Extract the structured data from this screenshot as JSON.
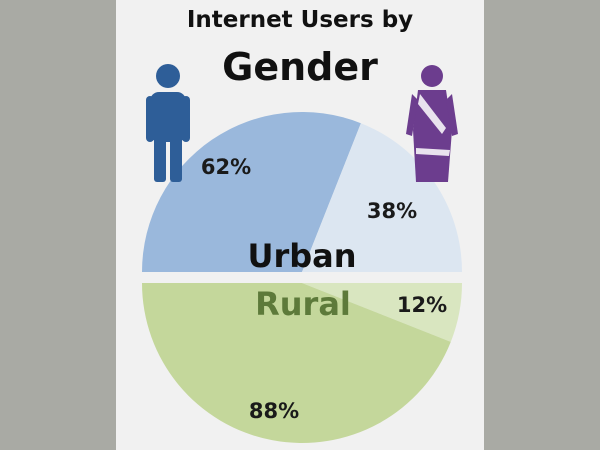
{
  "colors": {
    "background": "#a9aaa4",
    "panel": "#f1f1f1",
    "urban_male": "#9ab8dc",
    "urban_female": "#dce6f1",
    "rural_male": "#c4d79b",
    "rural_female": "#d9e6c0",
    "male_icon": "#2e5e98",
    "female_icon": "#6c3d8e",
    "rural_label": "#5d7a3a",
    "urban_label": "#111111"
  },
  "icons": {
    "male": "male-figure-icon",
    "female": "female-figure-icon-saree"
  },
  "chart_data": [
    {
      "type": "pie",
      "title": "Internet Users by",
      "subtitle": "Gender",
      "half_label": "Urban",
      "categories": [
        "male",
        "female"
      ],
      "values": [
        62,
        38
      ],
      "labels": [
        "62%",
        "38%"
      ]
    },
    {
      "type": "pie",
      "half_label": "Rural",
      "categories": [
        "male",
        "female"
      ],
      "values": [
        88,
        12
      ],
      "labels": [
        "88%",
        "12%"
      ]
    }
  ]
}
